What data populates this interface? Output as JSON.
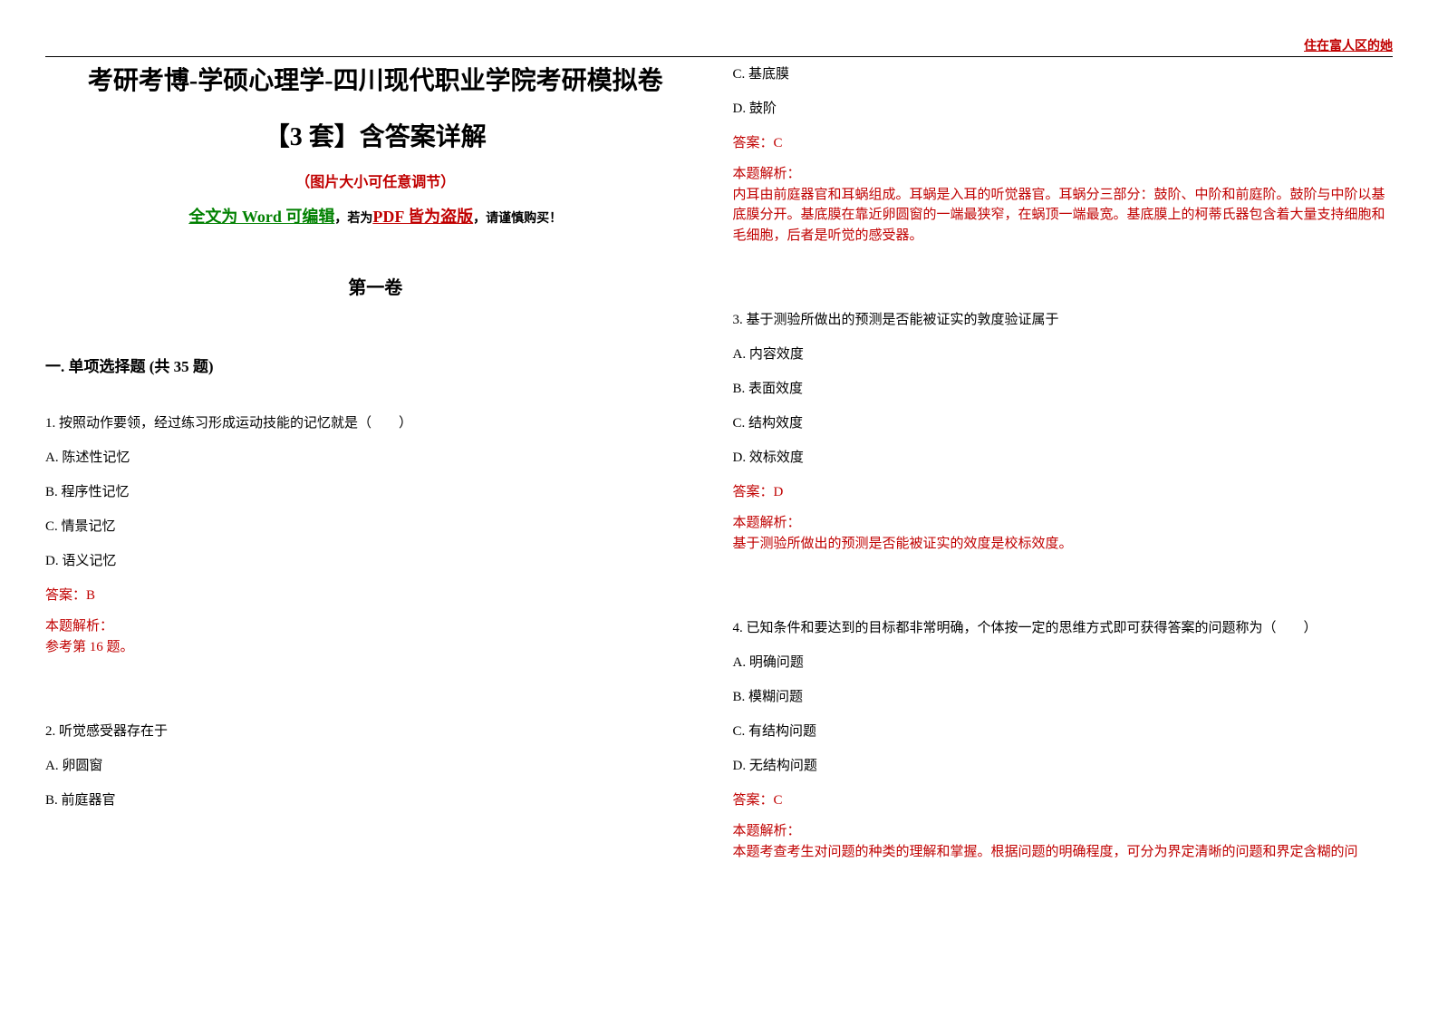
{
  "header": {
    "right_note": "住在富人区的她"
  },
  "left_column": {
    "title_line1": "考研考博-学硕心理学-四川现代职业学院考研模拟卷",
    "title_line2": "【3 套】含答案详解",
    "note_red": "（图片大小可任意调节）",
    "note_mixed": {
      "part1": "全文为 Word 可编辑",
      "part2": "，若为",
      "part3": "PDF 皆为盗版",
      "part4": "，请谨慎购买！"
    },
    "volume_title": "第一卷",
    "section_title": "一. 单项选择题 (共 35 题)",
    "q1": {
      "text": "1. 按照动作要领，经过练习形成运动技能的记忆就是（　　）",
      "optA": "A. 陈述性记忆",
      "optB": "B. 程序性记忆",
      "optC": "C. 情景记忆",
      "optD": "D. 语义记忆",
      "answer": "答案：B",
      "explain_label": "本题解析：",
      "explain": "参考第 16 题。"
    },
    "q2": {
      "text": "2. 听觉感受器存在于",
      "optA": "A. 卵圆窗",
      "optB": "B. 前庭器官"
    }
  },
  "right_column": {
    "q2_cont": {
      "optC": "C. 基底膜",
      "optD": "D. 鼓阶",
      "answer": "答案：C",
      "explain_label": "本题解析：",
      "explain": "内耳由前庭器官和耳蜗组成。耳蜗是入耳的听觉器官。耳蜗分三部分：鼓阶、中阶和前庭阶。鼓阶与中阶以基底膜分开。基底膜在靠近卵圆窗的一端最狭窄，在蜗顶一端最宽。基底膜上的柯蒂氏器包含着大量支持细胞和毛细胞，后者是听觉的感受器。"
    },
    "q3": {
      "text": "3. 基于测验所做出的预测是否能被证实的敦度验证属于",
      "optA": "A. 内容效度",
      "optB": "B. 表面效度",
      "optC": "C. 结构效度",
      "optD": "D. 效标效度",
      "answer": "答案：D",
      "explain_label": "本题解析：",
      "explain": "基于测验所做出的预测是否能被证实的效度是校标效度。"
    },
    "q4": {
      "text": "4. 已知条件和要达到的目标都非常明确，个体按一定的思维方式即可获得答案的问题称为（　　）",
      "optA": "A. 明确问题",
      "optB": "B. 模糊问题",
      "optC": "C. 有结构问题",
      "optD": "D. 无结构问题",
      "answer": "答案：C",
      "explain_label": "本题解析：",
      "explain": "本题考查考生对问题的种类的理解和掌握。根据问题的明确程度，可分为界定清晰的问题和界定含糊的问"
    }
  },
  "colors": {
    "red": "#c00000",
    "green": "#008000",
    "black": "#000000",
    "background": "#ffffff"
  }
}
